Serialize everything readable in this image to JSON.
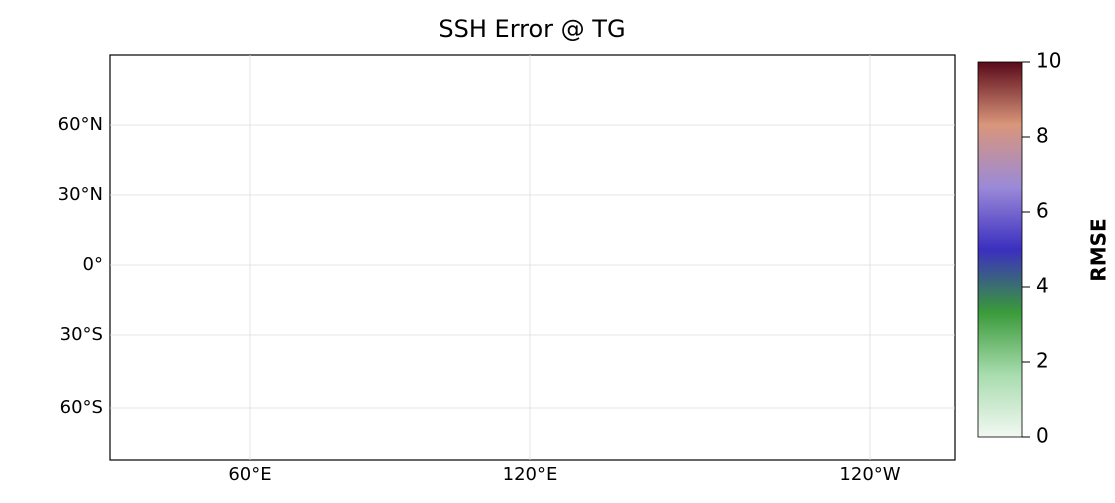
{
  "title": "SSH Error @ TG",
  "map": {
    "lat_labels": [
      "60°N",
      "30°N",
      "0°",
      "30°S",
      "60°S"
    ],
    "lon_labels": [
      "60°E",
      "120°E",
      "120°W"
    ]
  },
  "colorbar": {
    "label": "RMSE",
    "lim": [
      0,
      10
    ],
    "ticks": [
      0,
      2,
      4,
      6,
      8,
      10
    ],
    "colors": [
      "#f2f8f2",
      "#a8dcae",
      "#3a9a3a",
      "#3b2fbf",
      "#9b8ad8",
      "#d9967a",
      "#5a0a1a"
    ]
  }
}
